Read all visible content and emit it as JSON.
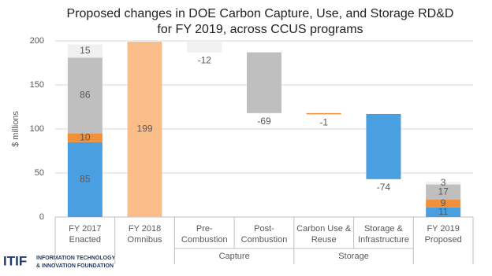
{
  "chart_data": {
    "type": "waterfall",
    "title": [
      "Proposed changes in DOE Carbon Capture, Use, and Storage RD&D",
      "for FY 2019, across CCUS programs"
    ],
    "y_label": "$ millions",
    "categories": [
      [
        "FY 2017",
        "Enacted"
      ],
      [
        "FY 2018",
        "Omnibus"
      ],
      [
        "Pre-",
        "Combustion"
      ],
      [
        "Post-",
        "Combustion"
      ],
      [
        "Carbon Use &",
        "Reuse"
      ],
      [
        "Storage &",
        "Infrastructure"
      ],
      [
        "FY 2019",
        "Proposed"
      ]
    ],
    "groups": [
      null,
      null,
      "Capture",
      "Capture",
      "Storage",
      "Storage",
      null
    ],
    "series": [
      {
        "color": "#4a9fe0",
        "values": [
          85,
          null,
          null,
          null,
          null,
          -74,
          11
        ]
      },
      {
        "color": "#f0903a",
        "values": [
          10,
          null,
          null,
          null,
          -1,
          null,
          9
        ]
      },
      {
        "color": "#bfbfbf",
        "values": [
          86,
          null,
          null,
          -69,
          null,
          null,
          17
        ]
      },
      {
        "color": "#f0f0f0",
        "values": [
          15,
          null,
          -12,
          null,
          null,
          null,
          3
        ]
      },
      {
        "color": "#f9bd8a",
        "values": [
          null,
          199,
          null,
          null,
          null,
          null,
          null
        ]
      }
    ],
    "ylim": [
      0,
      200
    ],
    "yticks": [
      0,
      50,
      100,
      150,
      200
    ],
    "grid": true
  },
  "logo": {
    "mark": "ITIF",
    "lines": [
      "INFORMATION TECHNOLOGY",
      "& INNOVATION FOUNDATION"
    ]
  }
}
